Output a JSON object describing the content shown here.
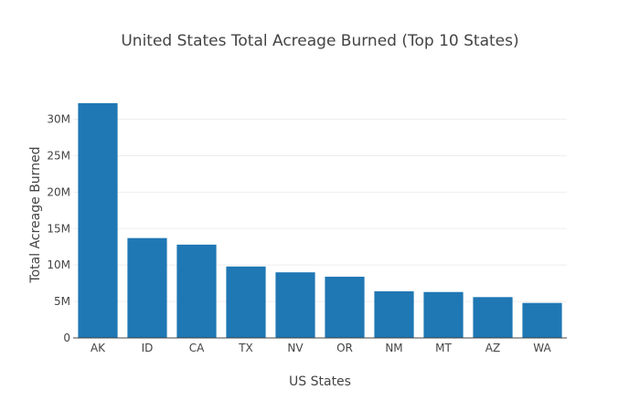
{
  "chart_data": {
    "type": "bar",
    "title": "United States Total Acreage Burned (Top 10 States)",
    "xlabel": "US States",
    "ylabel": "Total Acreage Burned",
    "categories": [
      "AK",
      "ID",
      "CA",
      "TX",
      "NV",
      "OR",
      "NM",
      "MT",
      "AZ",
      "WA"
    ],
    "values": [
      32200000,
      13700000,
      12800000,
      9800000,
      9000000,
      8400000,
      6400000,
      6300000,
      5600000,
      4800000
    ],
    "ylim": [
      0,
      32200000
    ],
    "yticks": [
      0,
      5000000,
      10000000,
      15000000,
      20000000,
      25000000,
      30000000
    ],
    "ytick_labels": [
      "0",
      "5M",
      "10M",
      "15M",
      "20M",
      "25M",
      "30M"
    ],
    "grid": true,
    "colors": {
      "bar": "#1f77b4"
    }
  }
}
